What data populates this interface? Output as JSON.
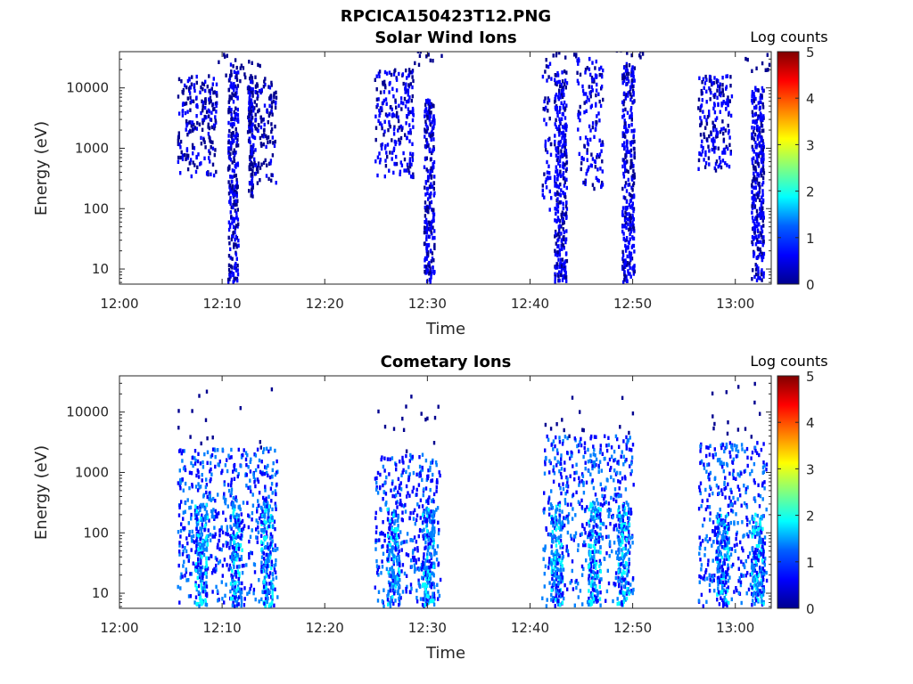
{
  "figure": {
    "title": "RPCICA150423T12.PNG"
  },
  "colormap": [
    "#00008f",
    "#0000ff",
    "#0080ff",
    "#00ffff",
    "#80ff80",
    "#ffff00",
    "#ff8000",
    "#ff0000",
    "#800000"
  ],
  "chart_data": [
    {
      "type": "heatmap",
      "title": "Solar Wind Ions",
      "xlabel": "Time",
      "ylabel": "Energy (eV)",
      "x_ticks": [
        "12:00",
        "12:10",
        "12:20",
        "12:30",
        "12:40",
        "12:50",
        "13:00"
      ],
      "y_ticks": [
        "10",
        "100",
        "1000",
        "10000"
      ],
      "xlim_minutes": [
        0,
        63.5
      ],
      "ylim_log10": [
        0.75,
        4.6
      ],
      "y_scale": "log",
      "colorbar": {
        "label": "Log counts",
        "range": [
          0,
          5
        ],
        "ticks": [
          "0",
          "1",
          "2",
          "3",
          "4",
          "5"
        ]
      },
      "bursts": [
        {
          "start_min": 5.6,
          "end_min": 9.4,
          "core_min": 11.0,
          "core_width_min": 1.0,
          "e_low_log10": 2.5,
          "e_high_log10": 4.2,
          "core_low_log10": 0.78,
          "core_high_log10": 4.4,
          "intensity_log": 0.6
        },
        {
          "start_min": 12.4,
          "end_min": 15.2,
          "core_min": 12.7,
          "core_width_min": 0.4,
          "e_low_log10": 2.4,
          "e_high_log10": 4.1,
          "core_low_log10": 2.2,
          "core_high_log10": 4.2,
          "intensity_log": 0.5
        },
        {
          "start_min": 24.8,
          "end_min": 28.6,
          "core_min": 30.1,
          "core_width_min": 1.0,
          "e_low_log10": 2.5,
          "e_high_log10": 4.3,
          "core_low_log10": 0.78,
          "core_high_log10": 3.8,
          "intensity_log": 0.7
        },
        {
          "start_min": 41.1,
          "end_min": 42.0,
          "core_min": 42.9,
          "core_width_min": 1.2,
          "e_low_log10": 1.9,
          "e_high_log10": 4.5,
          "core_low_log10": 0.78,
          "core_high_log10": 4.3,
          "intensity_log": 0.8
        },
        {
          "start_min": 44.5,
          "end_min": 47.0,
          "core_min": 49.5,
          "core_width_min": 1.2,
          "e_low_log10": 2.3,
          "e_high_log10": 4.5,
          "core_low_log10": 0.78,
          "core_high_log10": 4.4,
          "intensity_log": 0.8
        },
        {
          "start_min": 56.3,
          "end_min": 59.6,
          "core_min": 62.1,
          "core_width_min": 1.2,
          "e_low_log10": 2.6,
          "e_high_log10": 4.2,
          "core_low_log10": 0.78,
          "core_high_log10": 4.0,
          "intensity_log": 0.8
        }
      ]
    },
    {
      "type": "heatmap",
      "title": "Cometary Ions",
      "xlabel": "Time",
      "ylabel": "Energy (eV)",
      "x_ticks": [
        "12:00",
        "12:10",
        "12:20",
        "12:30",
        "12:40",
        "12:50",
        "13:00"
      ],
      "y_ticks": [
        "10",
        "100",
        "1000",
        "10000"
      ],
      "xlim_minutes": [
        0,
        63.5
      ],
      "ylim_log10": [
        0.75,
        4.6
      ],
      "y_scale": "log",
      "colorbar": {
        "label": "Log counts",
        "range": [
          0,
          5
        ],
        "ticks": [
          "0",
          "1",
          "2",
          "3",
          "4",
          "5"
        ]
      },
      "bursts": [
        {
          "start_min": 5.6,
          "end_min": 15.3,
          "hot_min": [
            7.9,
            11.3,
            14.3
          ],
          "e_low_log10": 0.78,
          "e_high_log10": 3.4,
          "hot_low_log10": 0.78,
          "hot_high_log10": 2.5,
          "intensity_log": 1.8
        },
        {
          "start_min": 24.8,
          "end_min": 31.2,
          "hot_min": [
            26.6,
            30.0
          ],
          "e_low_log10": 0.78,
          "e_high_log10": 3.3,
          "hot_low_log10": 0.78,
          "hot_high_log10": 2.4,
          "intensity_log": 1.7
        },
        {
          "start_min": 41.1,
          "end_min": 50.0,
          "hot_min": [
            42.5,
            46.2,
            49.0
          ],
          "e_low_log10": 0.78,
          "e_high_log10": 3.6,
          "hot_low_log10": 0.78,
          "hot_high_log10": 2.5,
          "intensity_log": 1.9
        },
        {
          "start_min": 56.3,
          "end_min": 63.0,
          "hot_min": [
            58.7,
            62.1
          ],
          "e_low_log10": 0.78,
          "e_high_log10": 3.5,
          "hot_low_log10": 0.78,
          "hot_high_log10": 2.3,
          "intensity_log": 1.8
        }
      ]
    }
  ]
}
